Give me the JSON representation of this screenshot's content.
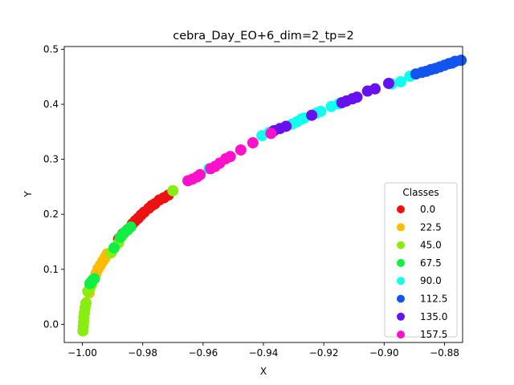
{
  "chart_data": {
    "type": "scatter",
    "title": "cebra_Day_EO+6_dim=2_tp=2",
    "xlabel": "X",
    "ylabel": "Y",
    "xlim": [
      -1.006,
      0.125
    ],
    "xlim_note": "",
    "x_range": [
      -1.006,
      -0.874
    ],
    "y_range": [
      -0.033,
      0.505
    ],
    "xticks": [
      -1.0,
      -0.98,
      -0.96,
      -0.94,
      -0.92,
      -0.9,
      -0.88
    ],
    "xtick_labels": [
      "−1.00",
      "−0.98",
      "−0.96",
      "−0.94",
      "−0.92",
      "−0.90",
      "−0.88"
    ],
    "yticks": [
      0.0,
      0.1,
      0.2,
      0.3,
      0.4,
      0.5
    ],
    "ytick_labels": [
      "0.0",
      "0.1",
      "0.2",
      "0.3",
      "0.4",
      "0.5"
    ],
    "grid": false,
    "legend": {
      "title": "Classes",
      "placement": "lower-right",
      "entries": [
        {
          "label": "0.0",
          "color": "#ee1111"
        },
        {
          "label": "22.5",
          "color": "#ffbb00"
        },
        {
          "label": "45.0",
          "color": "#88ee11"
        },
        {
          "label": "67.5",
          "color": "#11ee44"
        },
        {
          "label": "90.0",
          "color": "#11ffee"
        },
        {
          "label": "112.5",
          "color": "#1155ee"
        },
        {
          "label": "135.0",
          "color": "#6611ee"
        },
        {
          "label": "157.5",
          "color": "#ff11cc"
        }
      ]
    },
    "series": [
      {
        "class": "0.0",
        "color": "#ee1111",
        "points": [
          [
            -0.988,
            0.155
          ],
          [
            -0.9865,
            0.165
          ],
          [
            -0.985,
            0.172
          ],
          [
            -0.9835,
            0.182
          ],
          [
            -0.9825,
            0.188
          ],
          [
            -0.9815,
            0.193
          ],
          [
            -0.9805,
            0.199
          ],
          [
            -0.9795,
            0.204
          ],
          [
            -0.978,
            0.211
          ],
          [
            -0.977,
            0.216
          ],
          [
            -0.976,
            0.219
          ],
          [
            -0.9745,
            0.226
          ],
          [
            -0.973,
            0.23
          ],
          [
            -0.9715,
            0.235
          ]
        ]
      },
      {
        "class": "22.5",
        "color": "#ffbb00",
        "points": [
          [
            -0.9978,
            0.057
          ],
          [
            -0.9962,
            0.082
          ],
          [
            -0.9955,
            0.092
          ],
          [
            -0.9948,
            0.101
          ],
          [
            -0.994,
            0.108
          ],
          [
            -0.9932,
            0.115
          ],
          [
            -0.9925,
            0.121
          ],
          [
            -0.9918,
            0.128
          ]
        ]
      },
      {
        "class": "45.0",
        "color": "#88ee11",
        "points": [
          [
            -0.9998,
            -0.012
          ],
          [
            -0.9997,
            -0.004
          ],
          [
            -0.9996,
            0.004
          ],
          [
            -0.9995,
            0.013
          ],
          [
            -0.9993,
            0.021
          ],
          [
            -0.9991,
            0.03
          ],
          [
            -0.9988,
            0.039
          ],
          [
            -0.9982,
            0.06
          ],
          [
            -0.9975,
            0.066
          ],
          [
            -0.997,
            0.072
          ],
          [
            -0.9905,
            0.13
          ],
          [
            -0.988,
            0.148
          ],
          [
            -0.987,
            0.16
          ],
          [
            -0.97,
            0.243
          ]
        ]
      },
      {
        "class": "67.5",
        "color": "#11ee44",
        "points": [
          [
            -0.9975,
            0.074
          ],
          [
            -0.9968,
            0.079
          ],
          [
            -0.996,
            0.083
          ],
          [
            -0.9895,
            0.139
          ],
          [
            -0.9875,
            0.158
          ],
          [
            -0.9862,
            0.166
          ],
          [
            -0.9852,
            0.171
          ],
          [
            -0.984,
            0.177
          ]
        ]
      },
      {
        "class": "90.0",
        "color": "#11ffee",
        "points": [
          [
            -0.958,
            0.283
          ],
          [
            -0.9405,
            0.343
          ],
          [
            -0.938,
            0.349
          ],
          [
            -0.9305,
            0.364
          ],
          [
            -0.929,
            0.368
          ],
          [
            -0.9275,
            0.373
          ],
          [
            -0.9265,
            0.375
          ],
          [
            -0.9225,
            0.384
          ],
          [
            -0.921,
            0.387
          ],
          [
            -0.9175,
            0.396
          ],
          [
            -0.915,
            0.401
          ],
          [
            -0.8975,
            0.437
          ],
          [
            -0.8945,
            0.441
          ],
          [
            -0.8915,
            0.451
          ]
        ]
      },
      {
        "class": "112.5",
        "color": "#1155ee",
        "points": [
          [
            -0.8895,
            0.455
          ],
          [
            -0.8875,
            0.458
          ],
          [
            -0.886,
            0.46
          ],
          [
            -0.8845,
            0.463
          ],
          [
            -0.883,
            0.465
          ],
          [
            -0.8815,
            0.468
          ],
          [
            -0.88,
            0.471
          ],
          [
            -0.8785,
            0.474
          ],
          [
            -0.8775,
            0.475
          ],
          [
            -0.8765,
            0.478
          ],
          [
            -0.8745,
            0.48
          ]
        ]
      },
      {
        "class": "135.0",
        "color": "#6611ee",
        "points": [
          [
            -0.9365,
            0.352
          ],
          [
            -0.9345,
            0.356
          ],
          [
            -0.9325,
            0.36
          ],
          [
            -0.924,
            0.38
          ],
          [
            -0.914,
            0.403
          ],
          [
            -0.9125,
            0.406
          ],
          [
            -0.9105,
            0.41
          ],
          [
            -0.909,
            0.413
          ],
          [
            -0.9055,
            0.424
          ],
          [
            -0.903,
            0.428
          ],
          [
            -0.8985,
            0.438
          ]
        ]
      },
      {
        "class": "157.5",
        "color": "#ff11cc",
        "points": [
          [
            -0.965,
            0.261
          ],
          [
            -0.9635,
            0.264
          ],
          [
            -0.962,
            0.268
          ],
          [
            -0.961,
            0.272
          ],
          [
            -0.9575,
            0.283
          ],
          [
            -0.956,
            0.287
          ],
          [
            -0.9545,
            0.293
          ],
          [
            -0.9525,
            0.301
          ],
          [
            -0.951,
            0.305
          ],
          [
            -0.9475,
            0.317
          ],
          [
            -0.9435,
            0.33
          ],
          [
            -0.9375,
            0.347
          ]
        ]
      }
    ]
  }
}
